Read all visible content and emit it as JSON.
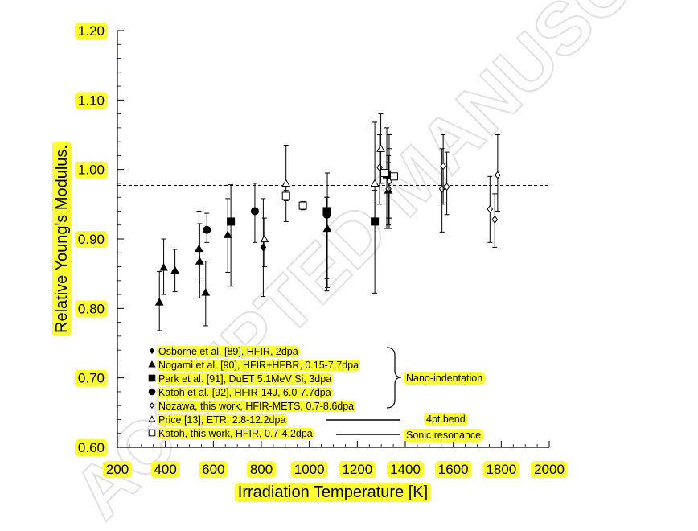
{
  "chart_data": {
    "type": "scatter",
    "title": "",
    "xlabel": "Irradiation Temperature [K]",
    "ylabel": "Relative Young's Modulus.",
    "xlim": [
      200,
      2000
    ],
    "ylim": [
      0.6,
      1.2
    ],
    "xticks": [
      "200",
      "400",
      "600",
      "800",
      "1000",
      "1200",
      "1400",
      "1600",
      "1800",
      "2000"
    ],
    "yticks": [
      "0.60",
      "0.70",
      "0.80",
      "0.90",
      "1.00",
      "1.10",
      "1.20"
    ],
    "grid": false,
    "legend_position": "bottom-left",
    "reference_line_y": 0.977,
    "watermark": "ACCEPTED MANUSCRIPT",
    "groups": [
      {
        "label": "Nano-indentation"
      },
      {
        "label": "4pt.bend"
      },
      {
        "label": "Sonic resonance"
      }
    ],
    "series": [
      {
        "name": "Osborne et al. [89], HFIR, 2dpa",
        "marker": "diamond-filled",
        "group": 0,
        "points": [
          {
            "x": 808,
            "y": 0.888,
            "lo": 0.817,
            "hi": 0.958
          }
        ]
      },
      {
        "name": "Nogami et al. [90], HFIR+HFBR,  0.15-7.7dpa",
        "marker": "triangle-filled",
        "group": 0,
        "points": [
          {
            "x": 375,
            "y": 0.809,
            "lo": 0.768,
            "hi": 0.853
          },
          {
            "x": 393,
            "y": 0.859,
            "lo": 0.82,
            "hi": 0.9
          },
          {
            "x": 440,
            "y": 0.855,
            "lo": 0.824,
            "hi": 0.885
          },
          {
            "x": 540,
            "y": 0.886,
            "lo": 0.838,
            "hi": 0.94
          },
          {
            "x": 543,
            "y": 0.868,
            "lo": 0.815,
            "hi": 0.922
          },
          {
            "x": 568,
            "y": 0.823,
            "lo": 0.775,
            "hi": 0.868
          },
          {
            "x": 660,
            "y": 0.906,
            "lo": 0.852,
            "hi": 0.958
          },
          {
            "x": 1075,
            "y": 0.915,
            "lo": 0.83,
            "hi": 0.995
          },
          {
            "x": 1330,
            "y": 0.97,
            "lo": 0.93,
            "hi": 1.01
          }
        ]
      },
      {
        "name": "Park et al. [91], DuET 5.1MeV Si, 3dpa",
        "marker": "square-filled",
        "group": 0,
        "points": [
          {
            "x": 673,
            "y": 0.925,
            "lo": 0.832,
            "hi": 0.978
          },
          {
            "x": 1073,
            "y": 0.94,
            "lo": 0.843,
            "hi": 0.96
          },
          {
            "x": 1273,
            "y": 0.925,
            "lo": 0.822,
            "hi": 0.97
          },
          {
            "x": 1323,
            "y": 0.993,
            "lo": 0.915,
            "hi": 1.06
          }
        ]
      },
      {
        "name": "Katoh et al. [92], HFIR-14J, 6.0-7.7dpa",
        "marker": "circle-filled",
        "group": 0,
        "points": [
          {
            "x": 573,
            "y": 0.913,
            "lo": 0.895,
            "hi": 0.937
          },
          {
            "x": 773,
            "y": 0.94,
            "lo": 0.895,
            "hi": 0.98
          },
          {
            "x": 1073,
            "y": 0.935,
            "lo": 0.825,
            "hi": 0.96
          },
          {
            "x": 1333,
            "y": 0.99,
            "lo": 0.915,
            "hi": 1.05
          }
        ]
      },
      {
        "name": "Nozawa, this work, HFIR-METS,  0.7-8.6dpa",
        "marker": "diamond-open",
        "group": 0,
        "points": [
          {
            "x": 1293,
            "y": 1.003,
            "lo": 0.95,
            "hi": 1.05
          },
          {
            "x": 1330,
            "y": 0.972,
            "lo": 0.92,
            "hi": 1.02
          },
          {
            "x": 1333,
            "y": 0.983,
            "lo": 0.93,
            "hi": 1.03
          },
          {
            "x": 1553,
            "y": 0.972,
            "lo": 0.91,
            "hi": 1.03
          },
          {
            "x": 1558,
            "y": 1.005,
            "lo": 0.95,
            "hi": 1.05
          },
          {
            "x": 1573,
            "y": 0.975,
            "lo": 0.935,
            "hi": 1.025
          },
          {
            "x": 1753,
            "y": 0.943,
            "lo": 0.895,
            "hi": 0.99
          },
          {
            "x": 1773,
            "y": 0.928,
            "lo": 0.888,
            "hi": 0.965
          },
          {
            "x": 1785,
            "y": 0.992,
            "lo": 0.94,
            "hi": 1.05
          }
        ]
      },
      {
        "name": "Price [13], ETR, 2.8-12.2dpa",
        "marker": "triangle-open",
        "group": 1,
        "points": [
          {
            "x": 813,
            "y": 0.9,
            "lo": 0.86,
            "hi": 0.93
          },
          {
            "x": 903,
            "y": 0.98,
            "lo": 0.925,
            "hi": 1.035
          },
          {
            "x": 1273,
            "y": 0.98,
            "lo": 0.93,
            "hi": 1.068
          },
          {
            "x": 1298,
            "y": 1.03,
            "lo": 0.98,
            "hi": 1.08
          }
        ]
      },
      {
        "name": "Katoh, this work, HFIR, 0.7-4.2dpa",
        "marker": "square-open",
        "group": 2,
        "points": [
          {
            "x": 903,
            "y": 0.962,
            "lo": 0.955,
            "hi": 0.97
          },
          {
            "x": 973,
            "y": 0.948,
            "lo": 0.942,
            "hi": 0.954
          },
          {
            "x": 1313,
            "y": 0.995,
            "lo": 0.99,
            "hi": 1.0
          },
          {
            "x": 1353,
            "y": 0.99,
            "lo": 0.985,
            "hi": 0.995
          }
        ]
      }
    ]
  }
}
